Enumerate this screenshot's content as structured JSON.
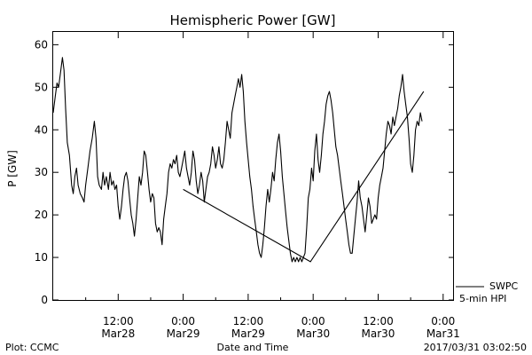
{
  "chart_data": {
    "type": "line",
    "title": "Hemispheric Power [GW]",
    "ylabel": "P [GW]",
    "xlabel": "Date and Time",
    "ylim": [
      0,
      63
    ],
    "yticks": [
      0,
      10,
      20,
      30,
      40,
      50,
      60
    ],
    "xlim_hours": [
      -12,
      62
    ],
    "grid": false,
    "xticks": [
      {
        "hour": 0,
        "time": "12:00",
        "date": "Mar28"
      },
      {
        "hour": 12,
        "time": "0:00",
        "date": "Mar29"
      },
      {
        "hour": 24,
        "time": "12:00",
        "date": "Mar29"
      },
      {
        "hour": 36,
        "time": "0:00",
        "date": "Mar30"
      },
      {
        "hour": 48,
        "time": "12:00",
        "date": "Mar30"
      },
      {
        "hour": 60,
        "time": "0:00",
        "date": "Mar31"
      }
    ],
    "legend": {
      "line1": "SWPC",
      "line2": "5-min HPI",
      "placement": "bottom-right outside"
    },
    "series": [
      {
        "name": "SWPC",
        "points": [
          [
            -12,
            44
          ],
          [
            -11.6,
            48
          ],
          [
            -11.3,
            51
          ],
          [
            -11,
            50
          ],
          [
            -10.6,
            54
          ],
          [
            -10.3,
            57
          ],
          [
            -10,
            54
          ],
          [
            -9.7,
            45
          ],
          [
            -9.4,
            37
          ],
          [
            -9,
            34
          ],
          [
            -8.6,
            27
          ],
          [
            -8.3,
            25
          ],
          [
            -8,
            29
          ],
          [
            -7.7,
            31
          ],
          [
            -7.4,
            27
          ],
          [
            -7,
            25
          ],
          [
            -6.6,
            24
          ],
          [
            -6.3,
            23
          ],
          [
            -6,
            27
          ],
          [
            -5.6,
            31
          ],
          [
            -5.2,
            35
          ],
          [
            -4.8,
            38
          ],
          [
            -4.4,
            42
          ],
          [
            -4.1,
            38
          ],
          [
            -3.8,
            29
          ],
          [
            -3.5,
            27
          ],
          [
            -3.1,
            26
          ],
          [
            -2.8,
            30
          ],
          [
            -2.5,
            27
          ],
          [
            -2.2,
            29
          ],
          [
            -1.8,
            26
          ],
          [
            -1.5,
            30
          ],
          [
            -1.2,
            27
          ],
          [
            -0.9,
            28
          ],
          [
            -0.6,
            26
          ],
          [
            -0.3,
            27
          ],
          [
            0,
            22
          ],
          [
            0.3,
            19
          ],
          [
            0.6,
            22
          ],
          [
            0.9,
            26
          ],
          [
            1.2,
            29
          ],
          [
            1.5,
            30
          ],
          [
            1.8,
            28
          ],
          [
            2.1,
            24
          ],
          [
            2.4,
            20
          ],
          [
            2.7,
            18
          ],
          [
            3,
            15
          ],
          [
            3.3,
            19
          ],
          [
            3.6,
            24
          ],
          [
            3.9,
            29
          ],
          [
            4.2,
            27
          ],
          [
            4.5,
            30
          ],
          [
            4.8,
            35
          ],
          [
            5.1,
            34
          ],
          [
            5.4,
            30
          ],
          [
            5.7,
            26
          ],
          [
            6,
            23
          ],
          [
            6.3,
            25
          ],
          [
            6.6,
            24
          ],
          [
            6.9,
            18
          ],
          [
            7.2,
            16
          ],
          [
            7.5,
            17
          ],
          [
            7.8,
            16
          ],
          [
            8.1,
            13
          ],
          [
            8.4,
            19
          ],
          [
            8.7,
            22
          ],
          [
            9,
            25
          ],
          [
            9.3,
            30
          ],
          [
            9.6,
            32
          ],
          [
            9.9,
            31
          ],
          [
            10.2,
            33
          ],
          [
            10.5,
            32
          ],
          [
            10.8,
            34
          ],
          [
            11.1,
            30
          ],
          [
            11.4,
            29
          ],
          [
            11.7,
            31
          ],
          [
            12,
            33
          ],
          [
            12.3,
            35
          ],
          [
            12.6,
            31
          ],
          [
            12.9,
            29
          ],
          [
            13.2,
            27
          ],
          [
            13.5,
            30
          ],
          [
            13.8,
            35
          ],
          [
            14.1,
            33
          ],
          [
            14.4,
            28
          ],
          [
            14.7,
            25
          ],
          [
            15,
            27
          ],
          [
            15.3,
            30
          ],
          [
            15.6,
            28
          ],
          [
            15.9,
            23
          ],
          [
            16.2,
            26
          ],
          [
            16.5,
            29
          ],
          [
            16.8,
            30
          ],
          [
            17.1,
            32
          ],
          [
            17.4,
            36
          ],
          [
            17.7,
            34
          ],
          [
            18,
            31
          ],
          [
            18.3,
            33
          ],
          [
            18.6,
            36
          ],
          [
            18.9,
            32
          ],
          [
            19.2,
            31
          ],
          [
            19.5,
            33
          ],
          [
            19.8,
            37
          ],
          [
            20.1,
            42
          ],
          [
            20.4,
            40
          ],
          [
            20.7,
            38
          ],
          [
            21,
            44
          ],
          [
            21.3,
            46
          ],
          [
            21.6,
            48
          ],
          [
            21.9,
            50
          ],
          [
            22.2,
            52
          ],
          [
            22.5,
            50
          ],
          [
            22.8,
            53
          ],
          [
            23.1,
            49
          ],
          [
            23.4,
            42
          ],
          [
            23.7,
            37
          ],
          [
            24,
            33
          ],
          [
            24.3,
            29
          ],
          [
            24.6,
            26
          ],
          [
            24.9,
            22
          ],
          [
            25.2,
            19
          ],
          [
            25.5,
            16
          ],
          [
            25.8,
            13
          ],
          [
            26.1,
            11
          ],
          [
            26.4,
            10
          ],
          [
            26.7,
            13
          ],
          [
            27,
            17
          ],
          [
            27.3,
            22
          ],
          [
            27.6,
            26
          ],
          [
            27.9,
            23
          ],
          [
            28.2,
            26
          ],
          [
            28.5,
            30
          ],
          [
            28.8,
            28
          ],
          [
            29.1,
            33
          ],
          [
            29.4,
            37
          ],
          [
            29.7,
            39
          ],
          [
            30,
            35
          ],
          [
            30.3,
            29
          ],
          [
            30.6,
            25
          ],
          [
            30.9,
            21
          ],
          [
            31.2,
            17
          ],
          [
            31.5,
            14
          ],
          [
            31.8,
            11
          ],
          [
            32.1,
            9
          ],
          [
            32.4,
            10
          ],
          [
            32.7,
            9
          ],
          [
            33,
            10
          ],
          [
            33.3,
            9
          ],
          [
            33.6,
            10
          ],
          [
            33.9,
            9
          ],
          [
            34.2,
            10
          ],
          [
            34.5,
            11
          ],
          [
            34.8,
            17
          ],
          [
            35.1,
            24
          ],
          [
            35.4,
            26
          ],
          [
            35.7,
            31
          ],
          [
            36,
            28
          ],
          [
            36.3,
            35
          ],
          [
            36.6,
            39
          ],
          [
            36.9,
            33
          ],
          [
            37.2,
            30
          ],
          [
            37.5,
            34
          ],
          [
            37.8,
            39
          ],
          [
            38.1,
            42
          ],
          [
            38.4,
            46
          ],
          [
            38.7,
            48
          ],
          [
            39,
            49
          ],
          [
            39.3,
            47
          ],
          [
            39.6,
            44
          ],
          [
            39.9,
            40
          ],
          [
            40.2,
            36
          ],
          [
            40.5,
            34
          ],
          [
            40.8,
            31
          ],
          [
            41.1,
            28
          ],
          [
            41.4,
            25
          ],
          [
            41.7,
            22
          ],
          [
            42,
            19
          ],
          [
            42.3,
            16
          ],
          [
            42.6,
            13
          ],
          [
            42.9,
            11
          ],
          [
            43.2,
            11
          ],
          [
            43.5,
            15
          ],
          [
            43.8,
            19
          ],
          [
            44.1,
            23
          ],
          [
            44.4,
            28
          ],
          [
            44.7,
            24
          ],
          [
            45,
            22
          ],
          [
            45.3,
            19
          ],
          [
            45.6,
            16
          ],
          [
            45.9,
            20
          ],
          [
            46.2,
            24
          ],
          [
            46.5,
            22
          ],
          [
            46.8,
            18
          ],
          [
            47.1,
            19
          ],
          [
            47.4,
            20
          ],
          [
            47.7,
            19
          ],
          [
            48,
            24
          ],
          [
            48.3,
            27
          ],
          [
            48.6,
            29
          ],
          [
            48.9,
            31
          ],
          [
            49.2,
            35
          ],
          [
            49.5,
            39
          ],
          [
            49.8,
            42
          ],
          [
            50.1,
            41
          ],
          [
            50.4,
            39
          ],
          [
            50.7,
            43
          ],
          [
            51,
            41
          ],
          [
            51.3,
            43
          ],
          [
            51.6,
            45
          ],
          [
            51.9,
            48
          ],
          [
            52.2,
            50
          ],
          [
            52.5,
            53
          ],
          [
            52.8,
            49
          ],
          [
            53.1,
            46
          ],
          [
            53.4,
            43
          ],
          [
            53.7,
            38
          ],
          [
            54,
            32
          ],
          [
            54.3,
            30
          ],
          [
            54.6,
            34
          ],
          [
            54.9,
            40
          ],
          [
            55.2,
            42
          ],
          [
            55.5,
            41
          ],
          [
            55.8,
            44
          ],
          [
            56.1,
            42
          ]
        ]
      },
      {
        "name": "5-min HPI",
        "points": [
          [
            12,
            26
          ],
          [
            35.5,
            9
          ],
          [
            56.4,
            49
          ]
        ]
      }
    ]
  },
  "footer": {
    "left": "Plot: CCMC",
    "center": "Date and Time",
    "right": "2017/03/31 03:02:50"
  }
}
